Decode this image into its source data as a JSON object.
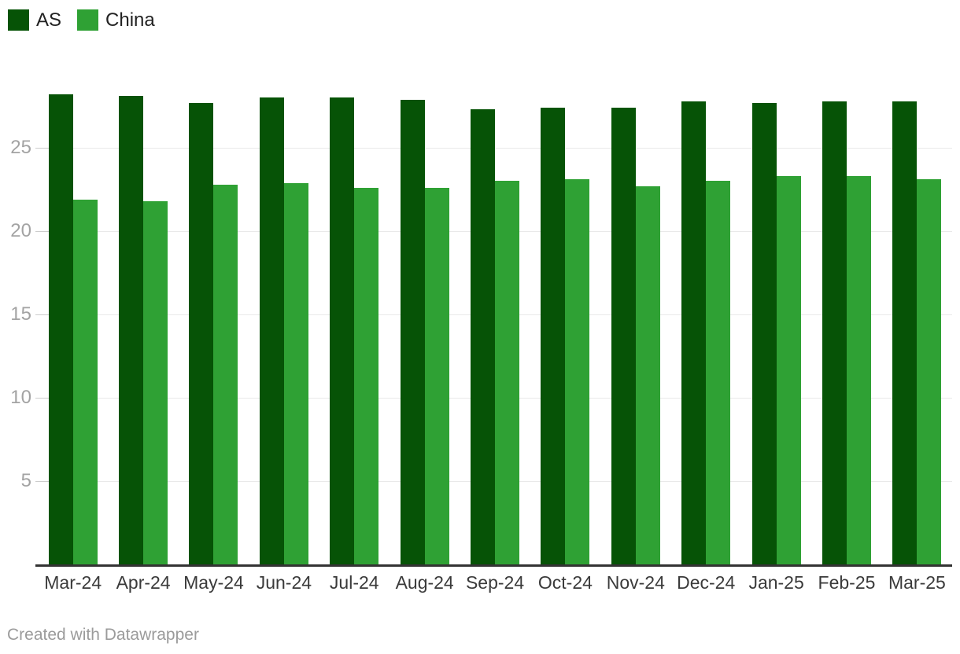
{
  "legend": {
    "items": [
      {
        "label": "AS",
        "color": "#065306"
      },
      {
        "label": "China",
        "color": "#2fa134"
      }
    ]
  },
  "footer": {
    "credit": "Created with Datawrapper"
  },
  "chart_data": {
    "type": "bar",
    "title": "",
    "categories": [
      "Mar-24",
      "Apr-24",
      "May-24",
      "Jun-24",
      "Jul-24",
      "Aug-24",
      "Sep-24",
      "Oct-24",
      "Nov-24",
      "Dec-24",
      "Jan-25",
      "Feb-25",
      "Mar-25"
    ],
    "series": [
      {
        "name": "AS",
        "color": "#065306",
        "values": [
          28.2,
          28.1,
          27.7,
          28.0,
          28.0,
          27.9,
          27.3,
          27.4,
          27.4,
          27.8,
          27.7,
          27.8,
          27.8
        ]
      },
      {
        "name": "China",
        "color": "#2fa134",
        "values": [
          21.9,
          21.8,
          22.8,
          22.9,
          22.6,
          22.6,
          23.0,
          23.1,
          22.7,
          23.0,
          23.3,
          23.3,
          23.1
        ]
      }
    ],
    "xlabel": "",
    "ylabel": "",
    "ylim": [
      0,
      28.5
    ],
    "yticks": [
      5,
      10,
      15,
      20,
      25
    ],
    "grid": true,
    "legend_position": "top-left",
    "gridline_color": "#e9e9e9",
    "axis_line_color": "#333333",
    "tick_label_color": "#a3a3a3",
    "category_label_color": "#3a3a3a"
  }
}
